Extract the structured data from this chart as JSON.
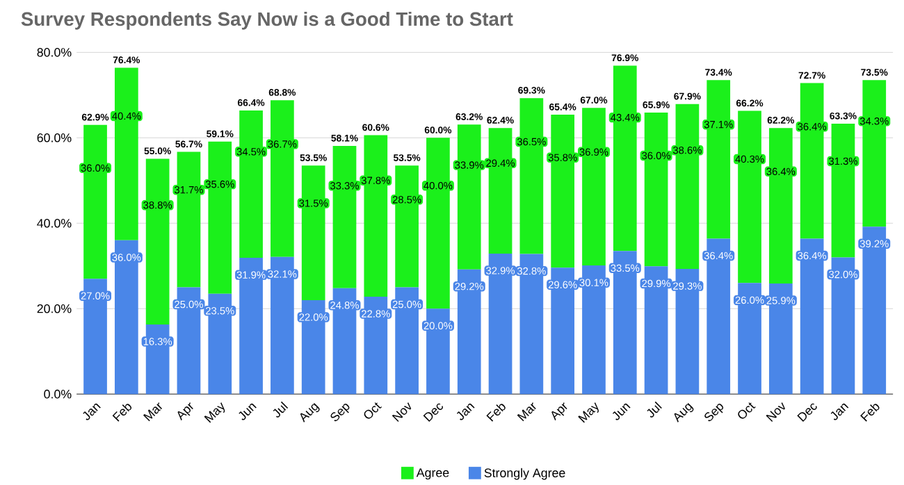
{
  "chart_data": {
    "type": "bar",
    "stacked": true,
    "title": "Survey Respondents Say Now is a Good Time to Start",
    "categories": [
      "Jan",
      "Feb",
      "Mar",
      "Apr",
      "May",
      "Jun",
      "Jul",
      "Aug",
      "Sep",
      "Oct",
      "Nov",
      "Dec",
      "Jan",
      "Feb",
      "Mar",
      "Apr",
      "May",
      "Jun",
      "Jul",
      "Aug",
      "Sep",
      "Oct",
      "Nov",
      "Dec",
      "Jan",
      "Feb"
    ],
    "series": [
      {
        "name": "Strongly Agree",
        "color": "#4a86e8",
        "values": [
          27.0,
          36.0,
          16.3,
          25.0,
          23.5,
          31.9,
          32.1,
          22.0,
          24.8,
          22.8,
          25.0,
          20.0,
          29.2,
          32.9,
          32.8,
          29.6,
          30.1,
          33.5,
          29.9,
          29.3,
          36.4,
          26.0,
          25.9,
          36.4,
          32.0,
          39.2
        ],
        "value_labels": [
          "27.0%",
          "36.0%",
          "16.3%",
          "25.0%",
          "23.5%",
          "31.9%",
          "32.1%",
          "22.0%",
          "24.8%",
          "22.8%",
          "25.0%",
          "20.0%",
          "29.2%",
          "32.9%",
          "32.8%",
          "29.6%",
          "30.1%",
          "33.5%",
          "29.9%",
          "29.3%",
          "36.4%",
          "26.0%",
          "25.9%",
          "36.4%",
          "32.0%",
          "39.2%"
        ]
      },
      {
        "name": "Agree",
        "color": "#1bf01b",
        "values": [
          36.0,
          40.4,
          38.8,
          31.7,
          35.6,
          34.5,
          36.7,
          31.5,
          33.3,
          37.8,
          28.5,
          40.0,
          33.9,
          29.4,
          36.5,
          35.8,
          36.9,
          43.4,
          36.0,
          38.6,
          37.1,
          40.3,
          36.4,
          36.4,
          31.3,
          34.3
        ],
        "value_labels": [
          "36.0%",
          "40.4%",
          "38.8%",
          "31.7%",
          "35.6%",
          "34.5%",
          "36.7%",
          "31.5%",
          "33.3%",
          "37.8%",
          "28.5%",
          "40.0%",
          "33.9%",
          "29.4%",
          "36.5%",
          "35.8%",
          "36.9%",
          "43.4%",
          "36.0%",
          "38.6%",
          "37.1%",
          "40.3%",
          "36.4%",
          "36.4%",
          "31.3%",
          "34.3%"
        ]
      }
    ],
    "totals": [
      "62.9%",
      "76.4%",
      "55.0%",
      "56.7%",
      "59.1%",
      "66.4%",
      "68.8%",
      "53.5%",
      "58.1%",
      "60.6%",
      "53.5%",
      "60.0%",
      "63.2%",
      "62.4%",
      "69.3%",
      "65.4%",
      "67.0%",
      "76.9%",
      "65.9%",
      "67.9%",
      "73.4%",
      "66.2%",
      "62.2%",
      "72.7%",
      "63.3%",
      "73.5%"
    ],
    "ylim": [
      0,
      80
    ],
    "yticks": [
      {
        "value": 0,
        "label": "0.0%"
      },
      {
        "value": 20,
        "label": "20.0%"
      },
      {
        "value": 40,
        "label": "40.0%"
      },
      {
        "value": 60,
        "label": "60.0%"
      },
      {
        "value": 80,
        "label": "80.0%"
      }
    ],
    "grid": "y",
    "legend": "bottom"
  }
}
